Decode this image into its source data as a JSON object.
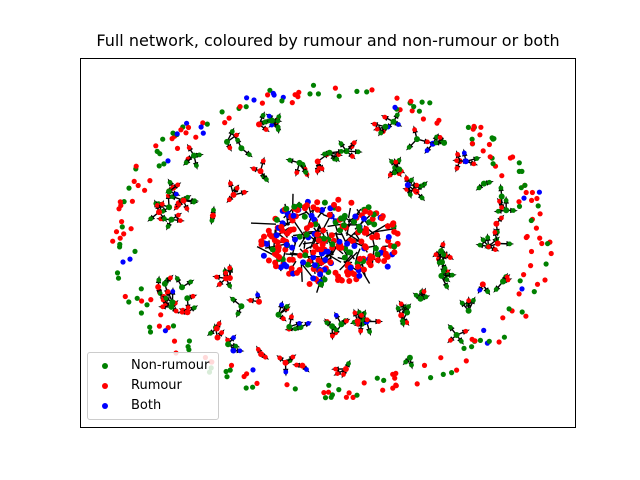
{
  "title": "Full network, coloured by rumour and non-rumour or both",
  "legend": {
    "items": [
      {
        "label": "Non-rumour",
        "color": "#008000"
      },
      {
        "label": "Rumour",
        "color": "#ff0000"
      },
      {
        "label": "Both",
        "color": "#0000ff"
      }
    ]
  },
  "colors": {
    "non_rumour": "#008000",
    "rumour": "#ff0000",
    "both": "#0000ff",
    "edge": "#000000"
  }
}
